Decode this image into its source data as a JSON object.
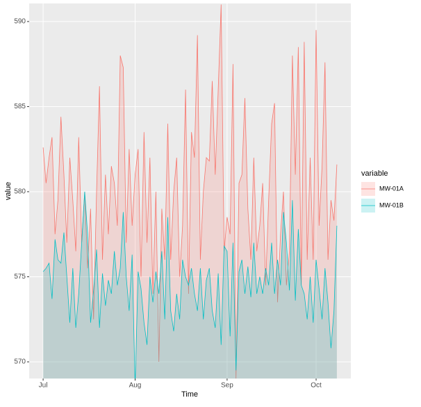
{
  "chart_data": {
    "type": "area",
    "x_label": "Time",
    "y_label": "value",
    "legend_title": "variable",
    "x": [
      0,
      1,
      2,
      3,
      4,
      5,
      6,
      7,
      8,
      9,
      10,
      11,
      12,
      13,
      14,
      15,
      16,
      17,
      18,
      19,
      20,
      21,
      22,
      23,
      24,
      25,
      26,
      27,
      28,
      29,
      30,
      31,
      32,
      33,
      34,
      35,
      36,
      37,
      38,
      39,
      40,
      41,
      42,
      43,
      44,
      45,
      46,
      47,
      48,
      49,
      50,
      51,
      52,
      53,
      54,
      55,
      56,
      57,
      58,
      59,
      60,
      61,
      62,
      63,
      64,
      65,
      66,
      67,
      68,
      69,
      70,
      71,
      72,
      73,
      74,
      75,
      76,
      77,
      78,
      79,
      80,
      81,
      82,
      83,
      84,
      85,
      86,
      87,
      88,
      89,
      90,
      91,
      92,
      93,
      94,
      95,
      96,
      97,
      98,
      99
    ],
    "series": [
      {
        "name": "MW-01A",
        "color": "#F8766D",
        "values": [
          582.6,
          580.5,
          582,
          583.2,
          577.5,
          579.5,
          584.4,
          581,
          577,
          582,
          579.5,
          576.5,
          583.2,
          577,
          580,
          575.5,
          579,
          572.5,
          580,
          586.2,
          576,
          581,
          577.5,
          581.5,
          580.5,
          578,
          588,
          587.3,
          577,
          582.5,
          578,
          581,
          582.5,
          575,
          583.5,
          577,
          582,
          574,
          580,
          570,
          579,
          576,
          584,
          576,
          580,
          582,
          575,
          578,
          586,
          574,
          583.5,
          582,
          589.2,
          576,
          580,
          582,
          581.8,
          586.5,
          581,
          586,
          591,
          576.5,
          578.5,
          577.5,
          587.5,
          569,
          580.5,
          581,
          585.5,
          579,
          576,
          582,
          576.5,
          578,
          580.5,
          574.5,
          579.5,
          584,
          585.2,
          573.5,
          577.5,
          580,
          574.5,
          576.5,
          588,
          581,
          588.5,
          574.5,
          588.8,
          576,
          582,
          576,
          589.5,
          578,
          581.5,
          587.6,
          576,
          579.5,
          578.3,
          581.6
        ]
      },
      {
        "name": "MW-01B",
        "color": "#00BFC4",
        "values": [
          575.3,
          575.5,
          575.8,
          573.7,
          577.2,
          576,
          575.8,
          577.6,
          575,
          572.3,
          575.5,
          572,
          574,
          577,
          580,
          577.5,
          572.3,
          574.2,
          576.6,
          572,
          575.2,
          573.3,
          574.8,
          574,
          576.5,
          574.5,
          575.5,
          578.8,
          575,
          573,
          576.3,
          568.5,
          575.3,
          574.3,
          572.3,
          571,
          575,
          573.5,
          575.3,
          574,
          576.5,
          572.5,
          578.5,
          573,
          571.8,
          574,
          572.5,
          576,
          575,
          574.5,
          575.5,
          574,
          573,
          575.5,
          572.5,
          574.8,
          575.5,
          573,
          572,
          575.2,
          571,
          576.8,
          576.5,
          571.5,
          577,
          569.5,
          575.3,
          576,
          574,
          575.6,
          573.8,
          577,
          574,
          575,
          574,
          575.5,
          574.5,
          577,
          574,
          576,
          574.5,
          578.8,
          577,
          574.2,
          579.5,
          573.6,
          577.8,
          574.5,
          574,
          572.5,
          575,
          572.3,
          576,
          574.3,
          572.5,
          575.5,
          573.5,
          570.8,
          573,
          578
        ]
      }
    ],
    "xlim": [
      -4.7,
      103.7
    ],
    "xticks": [
      {
        "value": 0,
        "label": "Jul"
      },
      {
        "value": 31,
        "label": "Aug"
      },
      {
        "value": 62,
        "label": "Sep"
      },
      {
        "value": 92,
        "label": "Oct"
      }
    ],
    "ylim": [
      569.02,
      591.06
    ],
    "yticks": [
      570,
      575,
      580,
      585,
      590
    ],
    "grid": true,
    "legend_position": "right"
  }
}
